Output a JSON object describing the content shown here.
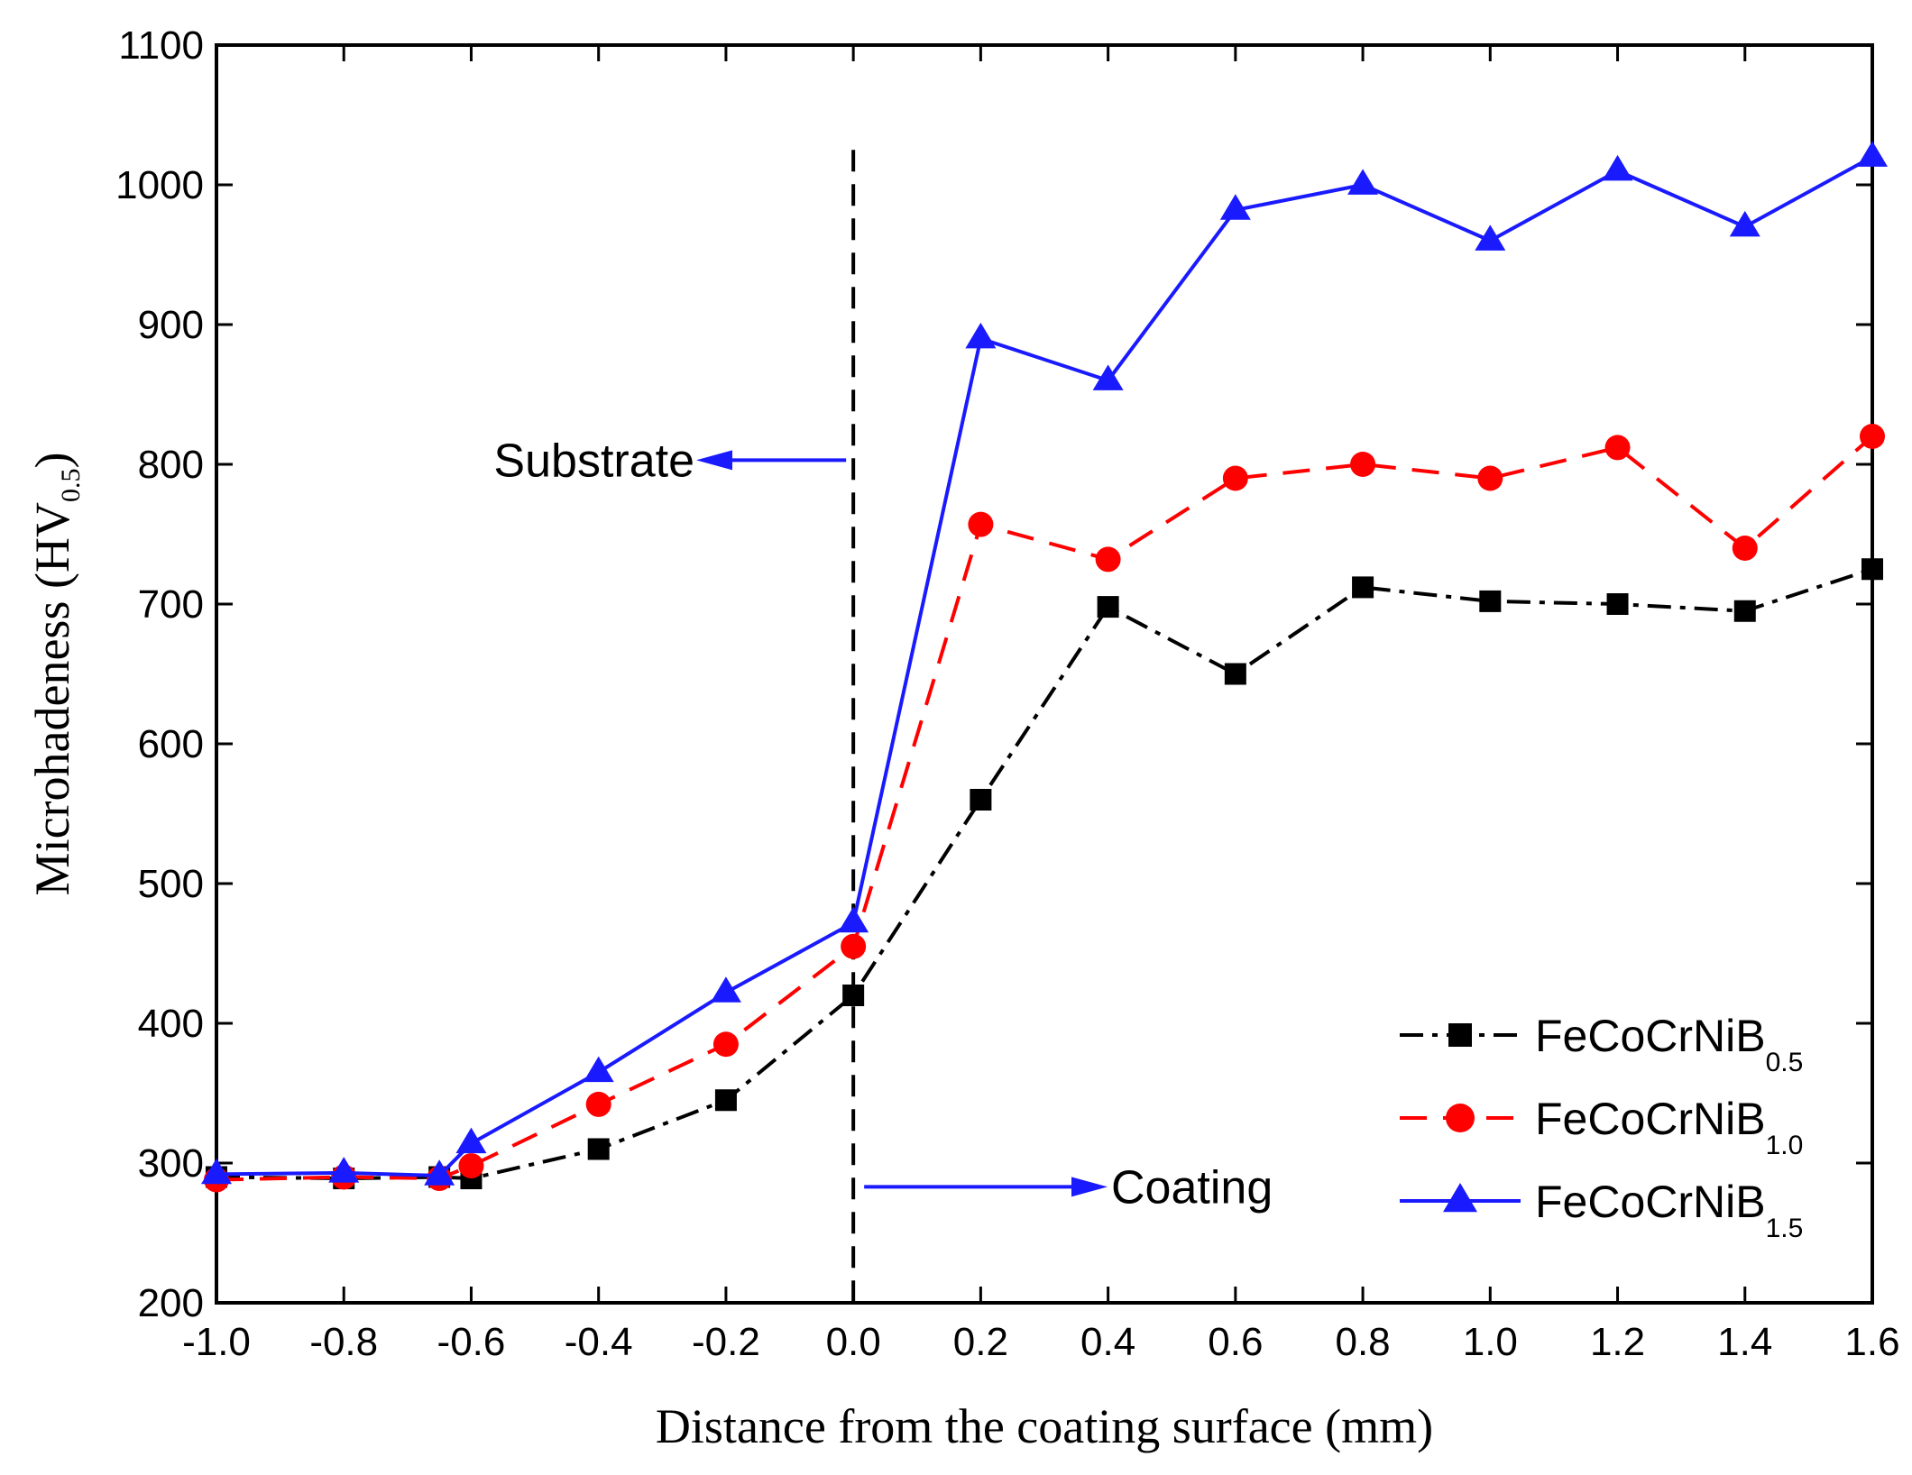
{
  "chart_data": {
    "type": "line",
    "title": "",
    "xlabel": "Distance from the coating surface (mm)",
    "ylabel": "Microhadeness (HV",
    "ylabel_sub": "0.5",
    "ylabel_tail": ")",
    "xlim": [
      -1.0,
      1.6
    ],
    "ylim": [
      200,
      1100
    ],
    "xticks": [
      {
        "v": -1.0,
        "label": "-1.0"
      },
      {
        "v": -0.8,
        "label": "-0.8"
      },
      {
        "v": -0.6,
        "label": "-0.6"
      },
      {
        "v": -0.4,
        "label": "-0.4"
      },
      {
        "v": -0.2,
        "label": "-0.2"
      },
      {
        "v": 0.0,
        "label": "0.0"
      },
      {
        "v": 0.2,
        "label": "0.2"
      },
      {
        "v": 0.4,
        "label": "0.4"
      },
      {
        "v": 0.6,
        "label": "0.6"
      },
      {
        "v": 0.8,
        "label": "0.8"
      },
      {
        "v": 1.0,
        "label": "1.0"
      },
      {
        "v": 1.2,
        "label": "1.2"
      },
      {
        "v": 1.4,
        "label": "1.4"
      },
      {
        "v": 1.6,
        "label": "1.6"
      }
    ],
    "yticks": [
      {
        "v": 200,
        "label": "200"
      },
      {
        "v": 300,
        "label": "300"
      },
      {
        "v": 400,
        "label": "400"
      },
      {
        "v": 500,
        "label": "500"
      },
      {
        "v": 600,
        "label": "600"
      },
      {
        "v": 700,
        "label": "700"
      },
      {
        "v": 800,
        "label": "800"
      },
      {
        "v": 900,
        "label": "900"
      },
      {
        "v": 1000,
        "label": "1000"
      },
      {
        "v": 1100,
        "label": "1100"
      }
    ],
    "x": [
      -1.0,
      -0.8,
      -0.65,
      -0.6,
      -0.4,
      -0.2,
      0.0,
      0.2,
      0.4,
      0.6,
      0.8,
      1.0,
      1.2,
      1.4,
      1.6
    ],
    "series": [
      {
        "name": "FeCoCrNiB",
        "sub": "0.5",
        "values": [
          290,
          289,
          290,
          289,
          310,
          345,
          420,
          560,
          698,
          650,
          712,
          702,
          700,
          695,
          725
        ],
        "color": "#000000",
        "dash": "26,10,6,10",
        "marker": "square"
      },
      {
        "name": "FeCoCrNiB",
        "sub": "1.0",
        "values": [
          288,
          290,
          289,
          298,
          342,
          385,
          455,
          757,
          732,
          790,
          800,
          790,
          812,
          740,
          820
        ],
        "color": "#ff0000",
        "dash": "30,18",
        "marker": "circle"
      },
      {
        "name": "FeCoCrNiB",
        "sub": "1.5",
        "values": [
          292,
          293,
          291,
          314,
          365,
          422,
          472,
          890,
          860,
          982,
          1000,
          960,
          1010,
          970,
          1020
        ],
        "color": "#1a1aff",
        "dash": "",
        "marker": "triangle"
      }
    ],
    "annotations": {
      "divider_x": 0.0,
      "divider_top": 1025,
      "substrate": {
        "label": "Substrate",
        "y": 803
      },
      "coating": {
        "label": "Coating",
        "y": 283
      }
    },
    "legend": "bottom-right"
  }
}
